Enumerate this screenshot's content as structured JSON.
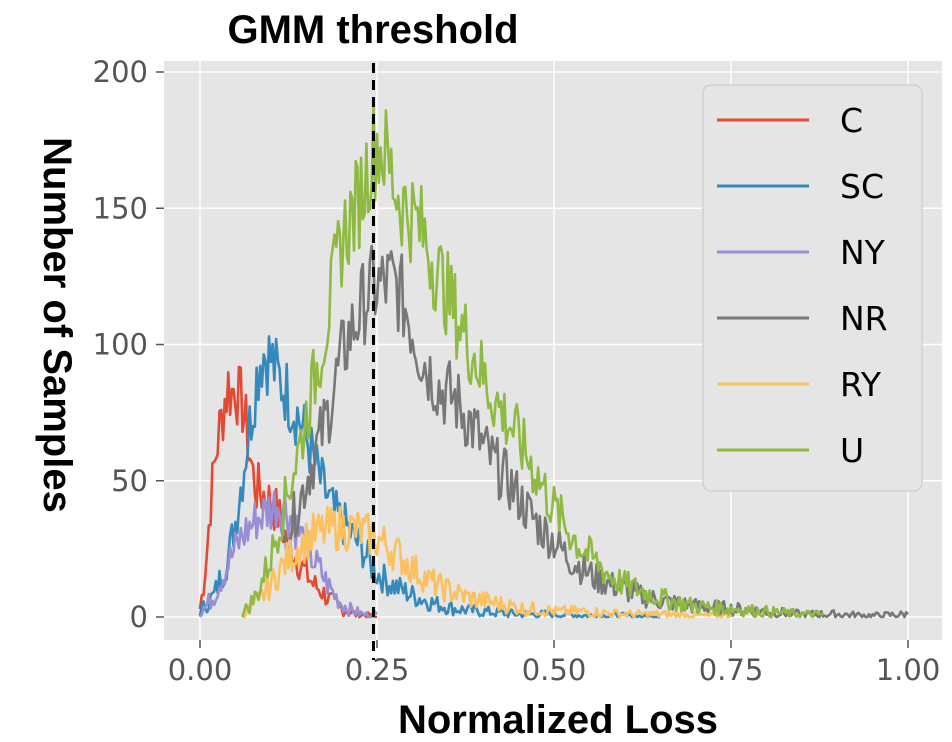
{
  "chart_data": {
    "type": "line",
    "title": "GMM threshold",
    "xlabel": "Normalized Loss",
    "ylabel": "Number of Samples",
    "xlim": [
      -0.05,
      1.04
    ],
    "ylim": [
      -10,
      202
    ],
    "xticks": [
      0.0,
      0.25,
      0.5,
      0.75,
      1.0
    ],
    "xtick_labels": [
      "0.00",
      "0.25",
      "0.50",
      "0.75",
      "1.00"
    ],
    "yticks": [
      0,
      50,
      100,
      150,
      200
    ],
    "ytick_labels": [
      "0",
      "50",
      "100",
      "150",
      "200"
    ],
    "grid": true,
    "legend_position": "top-right",
    "threshold": {
      "label": "GMM threshold",
      "x": 0.245,
      "style": "dashed",
      "color": "#000000"
    },
    "series": [
      {
        "name": "C",
        "color": "#E24A33",
        "points": [
          [
            0.0,
            3
          ],
          [
            0.005,
            12
          ],
          [
            0.01,
            25
          ],
          [
            0.015,
            42
          ],
          [
            0.02,
            55
          ],
          [
            0.025,
            65
          ],
          [
            0.03,
            72
          ],
          [
            0.035,
            80
          ],
          [
            0.04,
            85
          ],
          [
            0.045,
            82
          ],
          [
            0.05,
            86
          ],
          [
            0.055,
            80
          ],
          [
            0.06,
            78
          ],
          [
            0.065,
            70
          ],
          [
            0.07,
            60
          ],
          [
            0.075,
            52
          ],
          [
            0.08,
            47
          ],
          [
            0.09,
            45
          ],
          [
            0.1,
            42
          ],
          [
            0.11,
            38
          ],
          [
            0.12,
            30
          ],
          [
            0.13,
            25
          ],
          [
            0.14,
            20
          ],
          [
            0.15,
            16
          ],
          [
            0.16,
            12
          ],
          [
            0.17,
            10
          ],
          [
            0.18,
            7
          ],
          [
            0.19,
            5
          ],
          [
            0.2,
            3
          ],
          [
            0.21,
            2
          ],
          [
            0.22,
            1
          ],
          [
            0.24,
            0.5
          ],
          [
            0.25,
            0
          ]
        ]
      },
      {
        "name": "SC",
        "color": "#348ABD",
        "points": [
          [
            0.0,
            2
          ],
          [
            0.02,
            8
          ],
          [
            0.04,
            22
          ],
          [
            0.05,
            35
          ],
          [
            0.06,
            52
          ],
          [
            0.07,
            70
          ],
          [
            0.08,
            88
          ],
          [
            0.085,
            95
          ],
          [
            0.09,
            97
          ],
          [
            0.1,
            95
          ],
          [
            0.11,
            88
          ],
          [
            0.12,
            84
          ],
          [
            0.13,
            78
          ],
          [
            0.14,
            73
          ],
          [
            0.15,
            66
          ],
          [
            0.16,
            58
          ],
          [
            0.17,
            50
          ],
          [
            0.18,
            44
          ],
          [
            0.19,
            38
          ],
          [
            0.2,
            35
          ],
          [
            0.21,
            32
          ],
          [
            0.22,
            28
          ],
          [
            0.23,
            25
          ],
          [
            0.24,
            20
          ],
          [
            0.25,
            16
          ],
          [
            0.27,
            12
          ],
          [
            0.3,
            8
          ],
          [
            0.33,
            5
          ],
          [
            0.36,
            3
          ],
          [
            0.4,
            2
          ],
          [
            0.45,
            1
          ],
          [
            0.5,
            1
          ],
          [
            0.55,
            0.5
          ],
          [
            0.6,
            0.5
          ],
          [
            0.65,
            0
          ]
        ]
      },
      {
        "name": "NY",
        "color": "#988ED5",
        "points": [
          [
            0.0,
            1
          ],
          [
            0.02,
            8
          ],
          [
            0.04,
            20
          ],
          [
            0.06,
            30
          ],
          [
            0.08,
            36
          ],
          [
            0.1,
            40
          ],
          [
            0.11,
            42
          ],
          [
            0.12,
            40
          ],
          [
            0.13,
            36
          ],
          [
            0.14,
            31
          ],
          [
            0.15,
            26
          ],
          [
            0.16,
            21
          ],
          [
            0.17,
            17
          ],
          [
            0.18,
            12
          ],
          [
            0.19,
            8
          ],
          [
            0.2,
            5
          ],
          [
            0.21,
            3
          ],
          [
            0.22,
            2
          ],
          [
            0.23,
            1
          ],
          [
            0.24,
            0.5
          ],
          [
            0.25,
            1
          ]
        ]
      },
      {
        "name": "NR",
        "color": "#777777",
        "points": [
          [
            0.12,
            28
          ],
          [
            0.14,
            42
          ],
          [
            0.16,
            58
          ],
          [
            0.18,
            74
          ],
          [
            0.19,
            85
          ],
          [
            0.2,
            95
          ],
          [
            0.21,
            103
          ],
          [
            0.22,
            108
          ],
          [
            0.23,
            115
          ],
          [
            0.24,
            120
          ],
          [
            0.25,
            121
          ],
          [
            0.26,
            122
          ],
          [
            0.27,
            123
          ],
          [
            0.28,
            120
          ],
          [
            0.29,
            114
          ],
          [
            0.3,
            106
          ],
          [
            0.31,
            98
          ],
          [
            0.32,
            92
          ],
          [
            0.33,
            88
          ],
          [
            0.34,
            83
          ],
          [
            0.35,
            82
          ],
          [
            0.36,
            80
          ],
          [
            0.37,
            76
          ],
          [
            0.38,
            72
          ],
          [
            0.39,
            68
          ],
          [
            0.4,
            62
          ],
          [
            0.42,
            55
          ],
          [
            0.44,
            48
          ],
          [
            0.46,
            40
          ],
          [
            0.48,
            33
          ],
          [
            0.5,
            28
          ],
          [
            0.52,
            22
          ],
          [
            0.54,
            18
          ],
          [
            0.56,
            14
          ],
          [
            0.58,
            12
          ],
          [
            0.6,
            10
          ],
          [
            0.62,
            8
          ],
          [
            0.65,
            6
          ],
          [
            0.7,
            4
          ],
          [
            0.75,
            3
          ],
          [
            0.8,
            2
          ],
          [
            0.85,
            1
          ],
          [
            0.9,
            1
          ],
          [
            0.95,
            0.5
          ],
          [
            1.0,
            1
          ]
        ]
      },
      {
        "name": "RY",
        "color": "#FBC15E",
        "points": [
          [
            0.06,
            1
          ],
          [
            0.08,
            5
          ],
          [
            0.1,
            12
          ],
          [
            0.12,
            20
          ],
          [
            0.14,
            26
          ],
          [
            0.16,
            30
          ],
          [
            0.18,
            32
          ],
          [
            0.2,
            33
          ],
          [
            0.22,
            32
          ],
          [
            0.24,
            30
          ],
          [
            0.26,
            27
          ],
          [
            0.28,
            23
          ],
          [
            0.3,
            18
          ],
          [
            0.32,
            14
          ],
          [
            0.34,
            11
          ],
          [
            0.36,
            9
          ],
          [
            0.38,
            7
          ],
          [
            0.4,
            6
          ],
          [
            0.42,
            5
          ],
          [
            0.44,
            4
          ],
          [
            0.46,
            3
          ],
          [
            0.48,
            3
          ],
          [
            0.5,
            2
          ],
          [
            0.55,
            2
          ],
          [
            0.6,
            1
          ],
          [
            0.65,
            1
          ],
          [
            0.7,
            0.5
          ],
          [
            0.75,
            0.5
          ]
        ]
      },
      {
        "name": "U",
        "color": "#8EBA42",
        "points": [
          [
            0.06,
            1
          ],
          [
            0.08,
            8
          ],
          [
            0.1,
            22
          ],
          [
            0.12,
            42
          ],
          [
            0.14,
            62
          ],
          [
            0.16,
            85
          ],
          [
            0.18,
            110
          ],
          [
            0.2,
            138
          ],
          [
            0.21,
            145
          ],
          [
            0.22,
            150
          ],
          [
            0.23,
            158
          ],
          [
            0.24,
            168
          ],
          [
            0.25,
            174
          ],
          [
            0.26,
            171
          ],
          [
            0.27,
            163
          ],
          [
            0.28,
            155
          ],
          [
            0.29,
            150
          ],
          [
            0.3,
            147
          ],
          [
            0.31,
            143
          ],
          [
            0.32,
            138
          ],
          [
            0.33,
            130
          ],
          [
            0.34,
            124
          ],
          [
            0.35,
            118
          ],
          [
            0.36,
            112
          ],
          [
            0.37,
            106
          ],
          [
            0.38,
            100
          ],
          [
            0.39,
            95
          ],
          [
            0.4,
            88
          ],
          [
            0.42,
            78
          ],
          [
            0.44,
            70
          ],
          [
            0.46,
            60
          ],
          [
            0.48,
            50
          ],
          [
            0.5,
            40
          ],
          [
            0.52,
            32
          ],
          [
            0.54,
            25
          ],
          [
            0.56,
            20
          ],
          [
            0.58,
            15
          ],
          [
            0.6,
            12
          ],
          [
            0.62,
            10
          ],
          [
            0.65,
            7
          ],
          [
            0.68,
            5
          ],
          [
            0.7,
            4
          ],
          [
            0.75,
            3
          ],
          [
            0.8,
            2
          ],
          [
            0.85,
            1
          ],
          [
            0.88,
            1
          ]
        ]
      }
    ]
  }
}
